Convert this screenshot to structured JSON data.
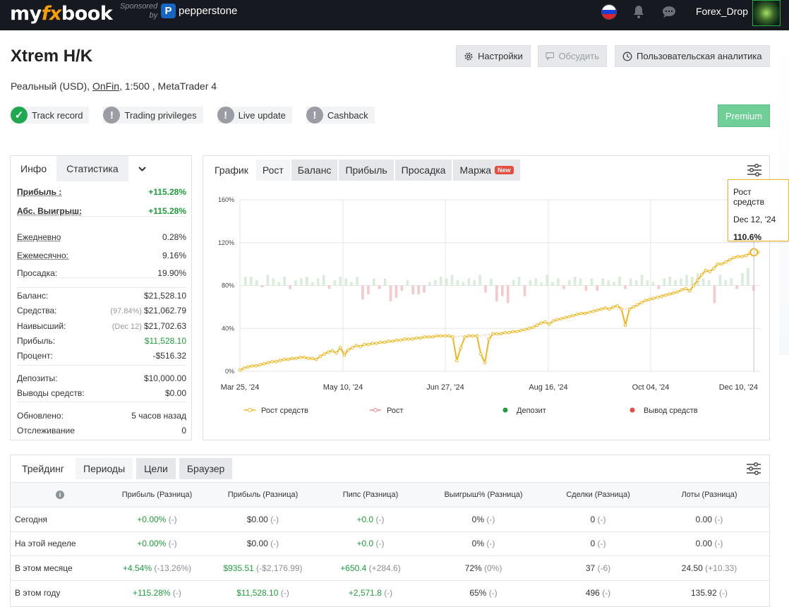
{
  "topbar": {
    "logo_pre": "my",
    "logo_fx": "fx",
    "logo_post": "book",
    "sponsored": "Sponsored",
    "by": "by",
    "sponsor_name": "pepperstone",
    "username": "Forex_Drop"
  },
  "header": {
    "title": "Xtrem H/K",
    "sub_pre": "Реальный (USD), ",
    "broker": "OnFin",
    "sub_post": ", 1:500 , MetaTrader 4",
    "buttons": {
      "settings": "Настройки",
      "discuss": "Обсудить",
      "analytics": "Пользовательская аналитика"
    },
    "badges": [
      "Track record",
      "Trading privileges",
      "Live update",
      "Cashback"
    ],
    "premium": "Premium"
  },
  "left": {
    "tabs": [
      "Инфо",
      "Статистика"
    ],
    "rows": [
      {
        "k": "Прибыль :",
        "v": "+115.28%"
      },
      {
        "k": "Абс. Выигрыш:",
        "v": "+115.28%"
      },
      {
        "k": "Ежедневно",
        "v": "0.28%"
      },
      {
        "k": "Ежемесячно:",
        "v": "9.16%"
      },
      {
        "k": "Просадка:",
        "v": "19.90%"
      },
      {
        "k": "Баланс:",
        "v": "$21,528.10"
      },
      {
        "k": "Средства:",
        "s": "(97.84%)",
        "v": "$21,062.79"
      },
      {
        "k": "Наивысший:",
        "s": "(Dec 12)",
        "v": "$21,702.63"
      },
      {
        "k": "Прибыль:",
        "v": "$11,528.10"
      },
      {
        "k": "Процент:",
        "v": "-$516.32"
      },
      {
        "k": "Депозиты:",
        "v": "$10,000.00"
      },
      {
        "k": "Выводы средств:",
        "v": "$0.00"
      },
      {
        "k": "Обновлено:",
        "v": "5 часов назад"
      },
      {
        "k": "Отслеживание",
        "v": "0"
      }
    ]
  },
  "chart_tabs": [
    "График",
    "Рост",
    "Баланс",
    "Прибыль",
    "Просадка",
    "Маржа"
  ],
  "chart_new_badge": "New",
  "tooltip": {
    "series": "Рост средств",
    "date": "Dec 12, '24",
    "value": "110.6%"
  },
  "chart_data": {
    "type": "line",
    "y_ticks": [
      "0%",
      "40%",
      "80%",
      "120%",
      "160%"
    ],
    "x_ticks": [
      "Mar 25, '24",
      "May 10, '24",
      "Jun 27, '24",
      "Aug 16, '24",
      "Oct 04, '24",
      "Dec 10, '24"
    ],
    "ylim": [
      0,
      160
    ],
    "legend": [
      "Рост средств",
      "Рост",
      "Депозит",
      "Вывод средств"
    ],
    "colors": {
      "equity": "#f2b61c",
      "growth": "#e88a8a",
      "deposit": "#1f9d3c",
      "withdrawal": "#e74c3c",
      "bar_pos": "#d8ecd8",
      "bar_neg": "#f3c9c9"
    },
    "series": [
      {
        "name": "Рост средств",
        "values": [
          1,
          3,
          4,
          5,
          5,
          6,
          7,
          8,
          9,
          9,
          10,
          11,
          11,
          12,
          12,
          13,
          13,
          12,
          12,
          11,
          14,
          16,
          18,
          19,
          17,
          22,
          15,
          20,
          22,
          24,
          23,
          25,
          25,
          26,
          26,
          27,
          27,
          28,
          28,
          29,
          29,
          30,
          30,
          30,
          31,
          31,
          32,
          32,
          32,
          33,
          33,
          33,
          33,
          32,
          10,
          22,
          32,
          33,
          33,
          33,
          16,
          8,
          30,
          35,
          35,
          35,
          36,
          36,
          37,
          37,
          38,
          39,
          40,
          41,
          43,
          45,
          46,
          44,
          47,
          48,
          49,
          50,
          51,
          52,
          53,
          54,
          54,
          55,
          56,
          57,
          58,
          59,
          58,
          60,
          61,
          58,
          43,
          58,
          60,
          62,
          64,
          66,
          67,
          68,
          69,
          70,
          71,
          72,
          73,
          74,
          76,
          77,
          75,
          80,
          85,
          90,
          94,
          93,
          96,
          100,
          100,
          102,
          104,
          106,
          107,
          107,
          108,
          110,
          111,
          111
        ]
      },
      {
        "name": "Рост",
        "values": [
          1,
          3,
          4,
          5,
          5,
          6,
          7,
          8,
          9,
          9,
          10,
          11,
          11,
          12,
          12,
          13,
          13,
          12,
          12,
          11,
          14,
          16,
          18,
          19,
          17,
          22,
          18,
          21,
          22,
          24,
          23,
          25,
          25,
          26,
          26,
          27,
          27,
          28,
          28,
          29,
          29,
          30,
          30,
          30,
          31,
          31,
          32,
          32,
          32,
          33,
          33,
          33,
          33,
          32,
          32,
          33,
          32,
          33,
          33,
          33,
          33,
          34,
          34,
          35,
          35,
          35,
          36,
          36,
          37,
          37,
          38,
          39,
          40,
          41,
          43,
          45,
          46,
          44,
          47,
          48,
          49,
          50,
          51,
          52,
          53,
          54,
          54,
          55,
          56,
          57,
          58,
          59,
          58,
          60,
          61,
          58,
          58,
          58,
          60,
          62,
          64,
          66,
          67,
          68,
          69,
          70,
          71,
          72,
          73,
          74,
          76,
          77,
          75,
          80,
          85,
          90,
          94,
          93,
          96,
          100,
          100,
          102,
          104,
          106,
          107,
          107,
          108,
          110,
          111,
          111
        ]
      }
    ],
    "bars": [
      0.5,
      0.5,
      0.3,
      -0.1,
      0.6,
      0.4,
      0.2,
      0.5,
      -0.2,
      0.3,
      0.4,
      0.5,
      0.2,
      0.4,
      0.6,
      -0.2,
      0.3,
      0.5,
      0.4,
      0.2,
      0.5,
      -0.8,
      -0.5,
      0.4,
      -0.2,
      0.4,
      -0.9,
      -0.7,
      -0.3,
      0.3,
      -0.5,
      -0.5,
      -0.4,
      0.2,
      0.3,
      0.5,
      0.4,
      0.6,
      0.3,
      0.2,
      0.4,
      0.3,
      0.6,
      -0.4,
      0.4,
      -0.9,
      -0.6,
      -1.0,
      0.3,
      0.5,
      -0.6,
      0.3,
      0.4,
      0.2,
      0.6,
      0.2,
      0.4,
      -0.2,
      0.3,
      0.5,
      0.4,
      -0.3,
      0.4,
      -0.3,
      0.4,
      0.3,
      0.2,
      0.5,
      -0.2,
      0.4,
      0.3,
      0.6,
      0.3,
      0.2,
      -0.2,
      0.4,
      0.5,
      0.3,
      0.4,
      0.6,
      0.5,
      0.7,
      0.4,
      0.3,
      -1.0,
      0.6,
      0.3,
      0.4,
      -0.2,
      0.7,
      1.0,
      -0.3
    ]
  },
  "bottom": {
    "tabs": [
      "Трейдинг",
      "Периоды",
      "Цели",
      "Браузер"
    ],
    "columns": [
      "Прибыль (Разница)",
      "Прибыль (Разница)",
      "Пипс (Разница)",
      "Выигрыш% (Разница)",
      "Сделки (Разница)",
      "Лоты (Разница)"
    ],
    "rows": [
      {
        "label": "Сегодня",
        "cells": [
          [
            "+0.00%",
            "(-)"
          ],
          [
            "$0.00",
            "(-)"
          ],
          [
            "+0.0",
            "(-)"
          ],
          [
            "0%",
            "(-)"
          ],
          [
            "0",
            "(-)"
          ],
          [
            "0.00",
            "(-)"
          ]
        ]
      },
      {
        "label": "На этой неделе",
        "cells": [
          [
            "+0.00%",
            "(-)"
          ],
          [
            "$0.00",
            "(-)"
          ],
          [
            "+0.0",
            "(-)"
          ],
          [
            "0%",
            "(-)"
          ],
          [
            "0",
            "(-)"
          ],
          [
            "0.00",
            "(-)"
          ]
        ]
      },
      {
        "label": "В этом месяце",
        "cells": [
          [
            "+4.54%",
            "(-13.26%)"
          ],
          [
            "$935.51",
            "(-$2,176.99)"
          ],
          [
            "+650.4",
            "(+284.6)"
          ],
          [
            "72%",
            "(0%)"
          ],
          [
            "37",
            "(-6)"
          ],
          [
            "24.50",
            "(+10.33)"
          ]
        ]
      },
      {
        "label": "В этом году",
        "cells": [
          [
            "+115.28%",
            "(-)"
          ],
          [
            "$11,528.10",
            "(-)"
          ],
          [
            "+2,571.8",
            "(-)"
          ],
          [
            "65%",
            "(-)"
          ],
          [
            "496",
            "(-)"
          ],
          [
            "135.92",
            "(-)"
          ]
        ]
      }
    ]
  }
}
